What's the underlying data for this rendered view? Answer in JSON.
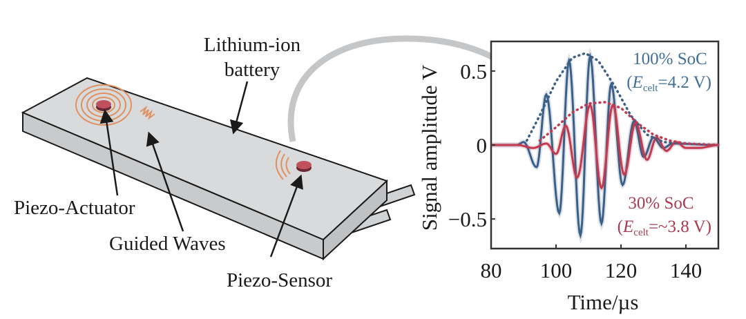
{
  "diagram": {
    "labels": {
      "battery_line1": "Lithium-ion",
      "battery_line2": "battery",
      "actuator": "Piezo-Actuator",
      "waves": "Guided Waves",
      "sensor": "Piezo-Sensor"
    },
    "colors": {
      "battery": "#d6d8da",
      "piezo": "#c0505e",
      "waves": "#e0905e",
      "arrow": "#c4c6c8"
    }
  },
  "chart_data": {
    "type": "line",
    "xlabel": "Time/µs",
    "ylabel": "Signal amplitude V",
    "xlim": [
      80,
      150
    ],
    "ylim": [
      -0.7,
      0.7
    ],
    "xticks": [
      80,
      100,
      120,
      140
    ],
    "xtick_labels": [
      "80",
      "100",
      "120",
      "140"
    ],
    "yticks": [
      0.5,
      0,
      -0.5
    ],
    "ytick_labels": [
      "0.5",
      "0",
      "−0.5"
    ],
    "grid": false,
    "annotations": [
      {
        "line1": "100% SoC",
        "open": "(",
        "E": "E",
        "sub": "celt",
        "value": "=4.2 V)",
        "color": "#3f6f9a"
      },
      {
        "line1": "30% SoC",
        "open": "(",
        "E": "E",
        "sub": "celt",
        "value": "=~3.8 V)",
        "color": "#a83a52"
      }
    ],
    "series": [
      {
        "label_ref": "100% SoC",
        "color": "#3b5f86",
        "style": "solid",
        "points": [
          [
            80,
            0
          ],
          [
            88,
            0
          ],
          [
            90,
            0.02
          ],
          [
            94,
            -0.15
          ],
          [
            97,
            0.34
          ],
          [
            101,
            -0.46
          ],
          [
            104,
            0.57
          ],
          [
            107.5,
            -0.61
          ],
          [
            110.5,
            0.6
          ],
          [
            114,
            -0.53
          ],
          [
            117,
            0.41
          ],
          [
            120.5,
            -0.27
          ],
          [
            124,
            0.16
          ],
          [
            127,
            -0.08
          ],
          [
            130,
            0.05
          ],
          [
            133,
            -0.02
          ],
          [
            136,
            0.01
          ],
          [
            150,
            0
          ]
        ]
      },
      {
        "label_ref": "30% SoC",
        "color": "#c23a50",
        "style": "solid",
        "points": [
          [
            80,
            0
          ],
          [
            88,
            0
          ],
          [
            93,
            -0.02
          ],
          [
            97,
            0.01
          ],
          [
            100,
            -0.06
          ],
          [
            103,
            0.13
          ],
          [
            106.5,
            -0.22
          ],
          [
            110.5,
            0.27
          ],
          [
            114,
            -0.29
          ],
          [
            117.5,
            0.27
          ],
          [
            121,
            -0.2
          ],
          [
            124.5,
            0.15
          ],
          [
            128,
            -0.1
          ],
          [
            131,
            0.05
          ],
          [
            134,
            -0.04
          ],
          [
            137,
            0.02
          ],
          [
            140,
            -0.02
          ],
          [
            144,
            -0.02
          ],
          [
            150,
            0
          ]
        ]
      },
      {
        "label_ref": "100% SoC envelope",
        "color": "#3b5f86",
        "style": "dotted",
        "points": [
          [
            91,
            0.03
          ],
          [
            95,
            0.2
          ],
          [
            100,
            0.43
          ],
          [
            105,
            0.59
          ],
          [
            109,
            0.62
          ],
          [
            113,
            0.57
          ],
          [
            118,
            0.4
          ],
          [
            123,
            0.2
          ],
          [
            128,
            0.07
          ],
          [
            133,
            0.02
          ],
          [
            140,
            0.01
          ]
        ]
      },
      {
        "label_ref": "30% SoC envelope",
        "color": "#c23a50",
        "style": "dotted",
        "points": [
          [
            95,
            0.03
          ],
          [
            100,
            0.12
          ],
          [
            105,
            0.22
          ],
          [
            110,
            0.28
          ],
          [
            115,
            0.29
          ],
          [
            120,
            0.25
          ],
          [
            125,
            0.15
          ],
          [
            130,
            0.07
          ],
          [
            135,
            0.03
          ],
          [
            140,
            0.01
          ],
          [
            150,
            0.0
          ]
        ]
      }
    ]
  }
}
